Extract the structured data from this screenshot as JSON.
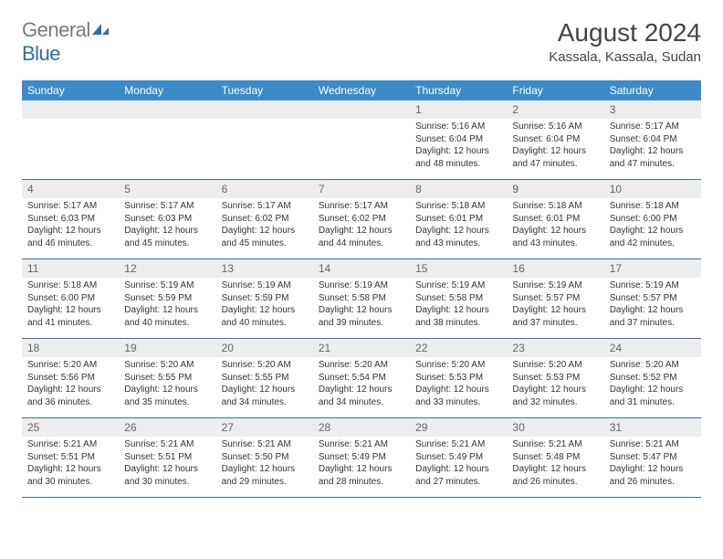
{
  "logo": {
    "word1": "General",
    "word2": "Blue"
  },
  "title": "August 2024",
  "location": "Kassala, Kassala, Sudan",
  "colors": {
    "header_bg": "#3b8bc9",
    "header_text": "#ffffff",
    "date_bar_bg": "#ededed",
    "date_bar_text": "#666666",
    "row_border": "#3b6fa0",
    "body_text": "#333333",
    "logo_gray": "#7a7a7a",
    "logo_blue": "#2f6fa8"
  },
  "day_names": [
    "Sunday",
    "Monday",
    "Tuesday",
    "Wednesday",
    "Thursday",
    "Friday",
    "Saturday"
  ],
  "weeks": [
    [
      null,
      null,
      null,
      null,
      {
        "date": "1",
        "sunrise": "5:16 AM",
        "sunset": "6:04 PM",
        "daylight": "12 hours and 48 minutes."
      },
      {
        "date": "2",
        "sunrise": "5:16 AM",
        "sunset": "6:04 PM",
        "daylight": "12 hours and 47 minutes."
      },
      {
        "date": "3",
        "sunrise": "5:17 AM",
        "sunset": "6:04 PM",
        "daylight": "12 hours and 47 minutes."
      }
    ],
    [
      {
        "date": "4",
        "sunrise": "5:17 AM",
        "sunset": "6:03 PM",
        "daylight": "12 hours and 46 minutes."
      },
      {
        "date": "5",
        "sunrise": "5:17 AM",
        "sunset": "6:03 PM",
        "daylight": "12 hours and 45 minutes."
      },
      {
        "date": "6",
        "sunrise": "5:17 AM",
        "sunset": "6:02 PM",
        "daylight": "12 hours and 45 minutes."
      },
      {
        "date": "7",
        "sunrise": "5:17 AM",
        "sunset": "6:02 PM",
        "daylight": "12 hours and 44 minutes."
      },
      {
        "date": "8",
        "sunrise": "5:18 AM",
        "sunset": "6:01 PM",
        "daylight": "12 hours and 43 minutes."
      },
      {
        "date": "9",
        "sunrise": "5:18 AM",
        "sunset": "6:01 PM",
        "daylight": "12 hours and 43 minutes."
      },
      {
        "date": "10",
        "sunrise": "5:18 AM",
        "sunset": "6:00 PM",
        "daylight": "12 hours and 42 minutes."
      }
    ],
    [
      {
        "date": "11",
        "sunrise": "5:18 AM",
        "sunset": "6:00 PM",
        "daylight": "12 hours and 41 minutes."
      },
      {
        "date": "12",
        "sunrise": "5:19 AM",
        "sunset": "5:59 PM",
        "daylight": "12 hours and 40 minutes."
      },
      {
        "date": "13",
        "sunrise": "5:19 AM",
        "sunset": "5:59 PM",
        "daylight": "12 hours and 40 minutes."
      },
      {
        "date": "14",
        "sunrise": "5:19 AM",
        "sunset": "5:58 PM",
        "daylight": "12 hours and 39 minutes."
      },
      {
        "date": "15",
        "sunrise": "5:19 AM",
        "sunset": "5:58 PM",
        "daylight": "12 hours and 38 minutes."
      },
      {
        "date": "16",
        "sunrise": "5:19 AM",
        "sunset": "5:57 PM",
        "daylight": "12 hours and 37 minutes."
      },
      {
        "date": "17",
        "sunrise": "5:19 AM",
        "sunset": "5:57 PM",
        "daylight": "12 hours and 37 minutes."
      }
    ],
    [
      {
        "date": "18",
        "sunrise": "5:20 AM",
        "sunset": "5:56 PM",
        "daylight": "12 hours and 36 minutes."
      },
      {
        "date": "19",
        "sunrise": "5:20 AM",
        "sunset": "5:55 PM",
        "daylight": "12 hours and 35 minutes."
      },
      {
        "date": "20",
        "sunrise": "5:20 AM",
        "sunset": "5:55 PM",
        "daylight": "12 hours and 34 minutes."
      },
      {
        "date": "21",
        "sunrise": "5:20 AM",
        "sunset": "5:54 PM",
        "daylight": "12 hours and 34 minutes."
      },
      {
        "date": "22",
        "sunrise": "5:20 AM",
        "sunset": "5:53 PM",
        "daylight": "12 hours and 33 minutes."
      },
      {
        "date": "23",
        "sunrise": "5:20 AM",
        "sunset": "5:53 PM",
        "daylight": "12 hours and 32 minutes."
      },
      {
        "date": "24",
        "sunrise": "5:20 AM",
        "sunset": "5:52 PM",
        "daylight": "12 hours and 31 minutes."
      }
    ],
    [
      {
        "date": "25",
        "sunrise": "5:21 AM",
        "sunset": "5:51 PM",
        "daylight": "12 hours and 30 minutes."
      },
      {
        "date": "26",
        "sunrise": "5:21 AM",
        "sunset": "5:51 PM",
        "daylight": "12 hours and 30 minutes."
      },
      {
        "date": "27",
        "sunrise": "5:21 AM",
        "sunset": "5:50 PM",
        "daylight": "12 hours and 29 minutes."
      },
      {
        "date": "28",
        "sunrise": "5:21 AM",
        "sunset": "5:49 PM",
        "daylight": "12 hours and 28 minutes."
      },
      {
        "date": "29",
        "sunrise": "5:21 AM",
        "sunset": "5:49 PM",
        "daylight": "12 hours and 27 minutes."
      },
      {
        "date": "30",
        "sunrise": "5:21 AM",
        "sunset": "5:48 PM",
        "daylight": "12 hours and 26 minutes."
      },
      {
        "date": "31",
        "sunrise": "5:21 AM",
        "sunset": "5:47 PM",
        "daylight": "12 hours and 26 minutes."
      }
    ]
  ],
  "labels": {
    "sunrise": "Sunrise: ",
    "sunset": "Sunset: ",
    "daylight": "Daylight: "
  }
}
